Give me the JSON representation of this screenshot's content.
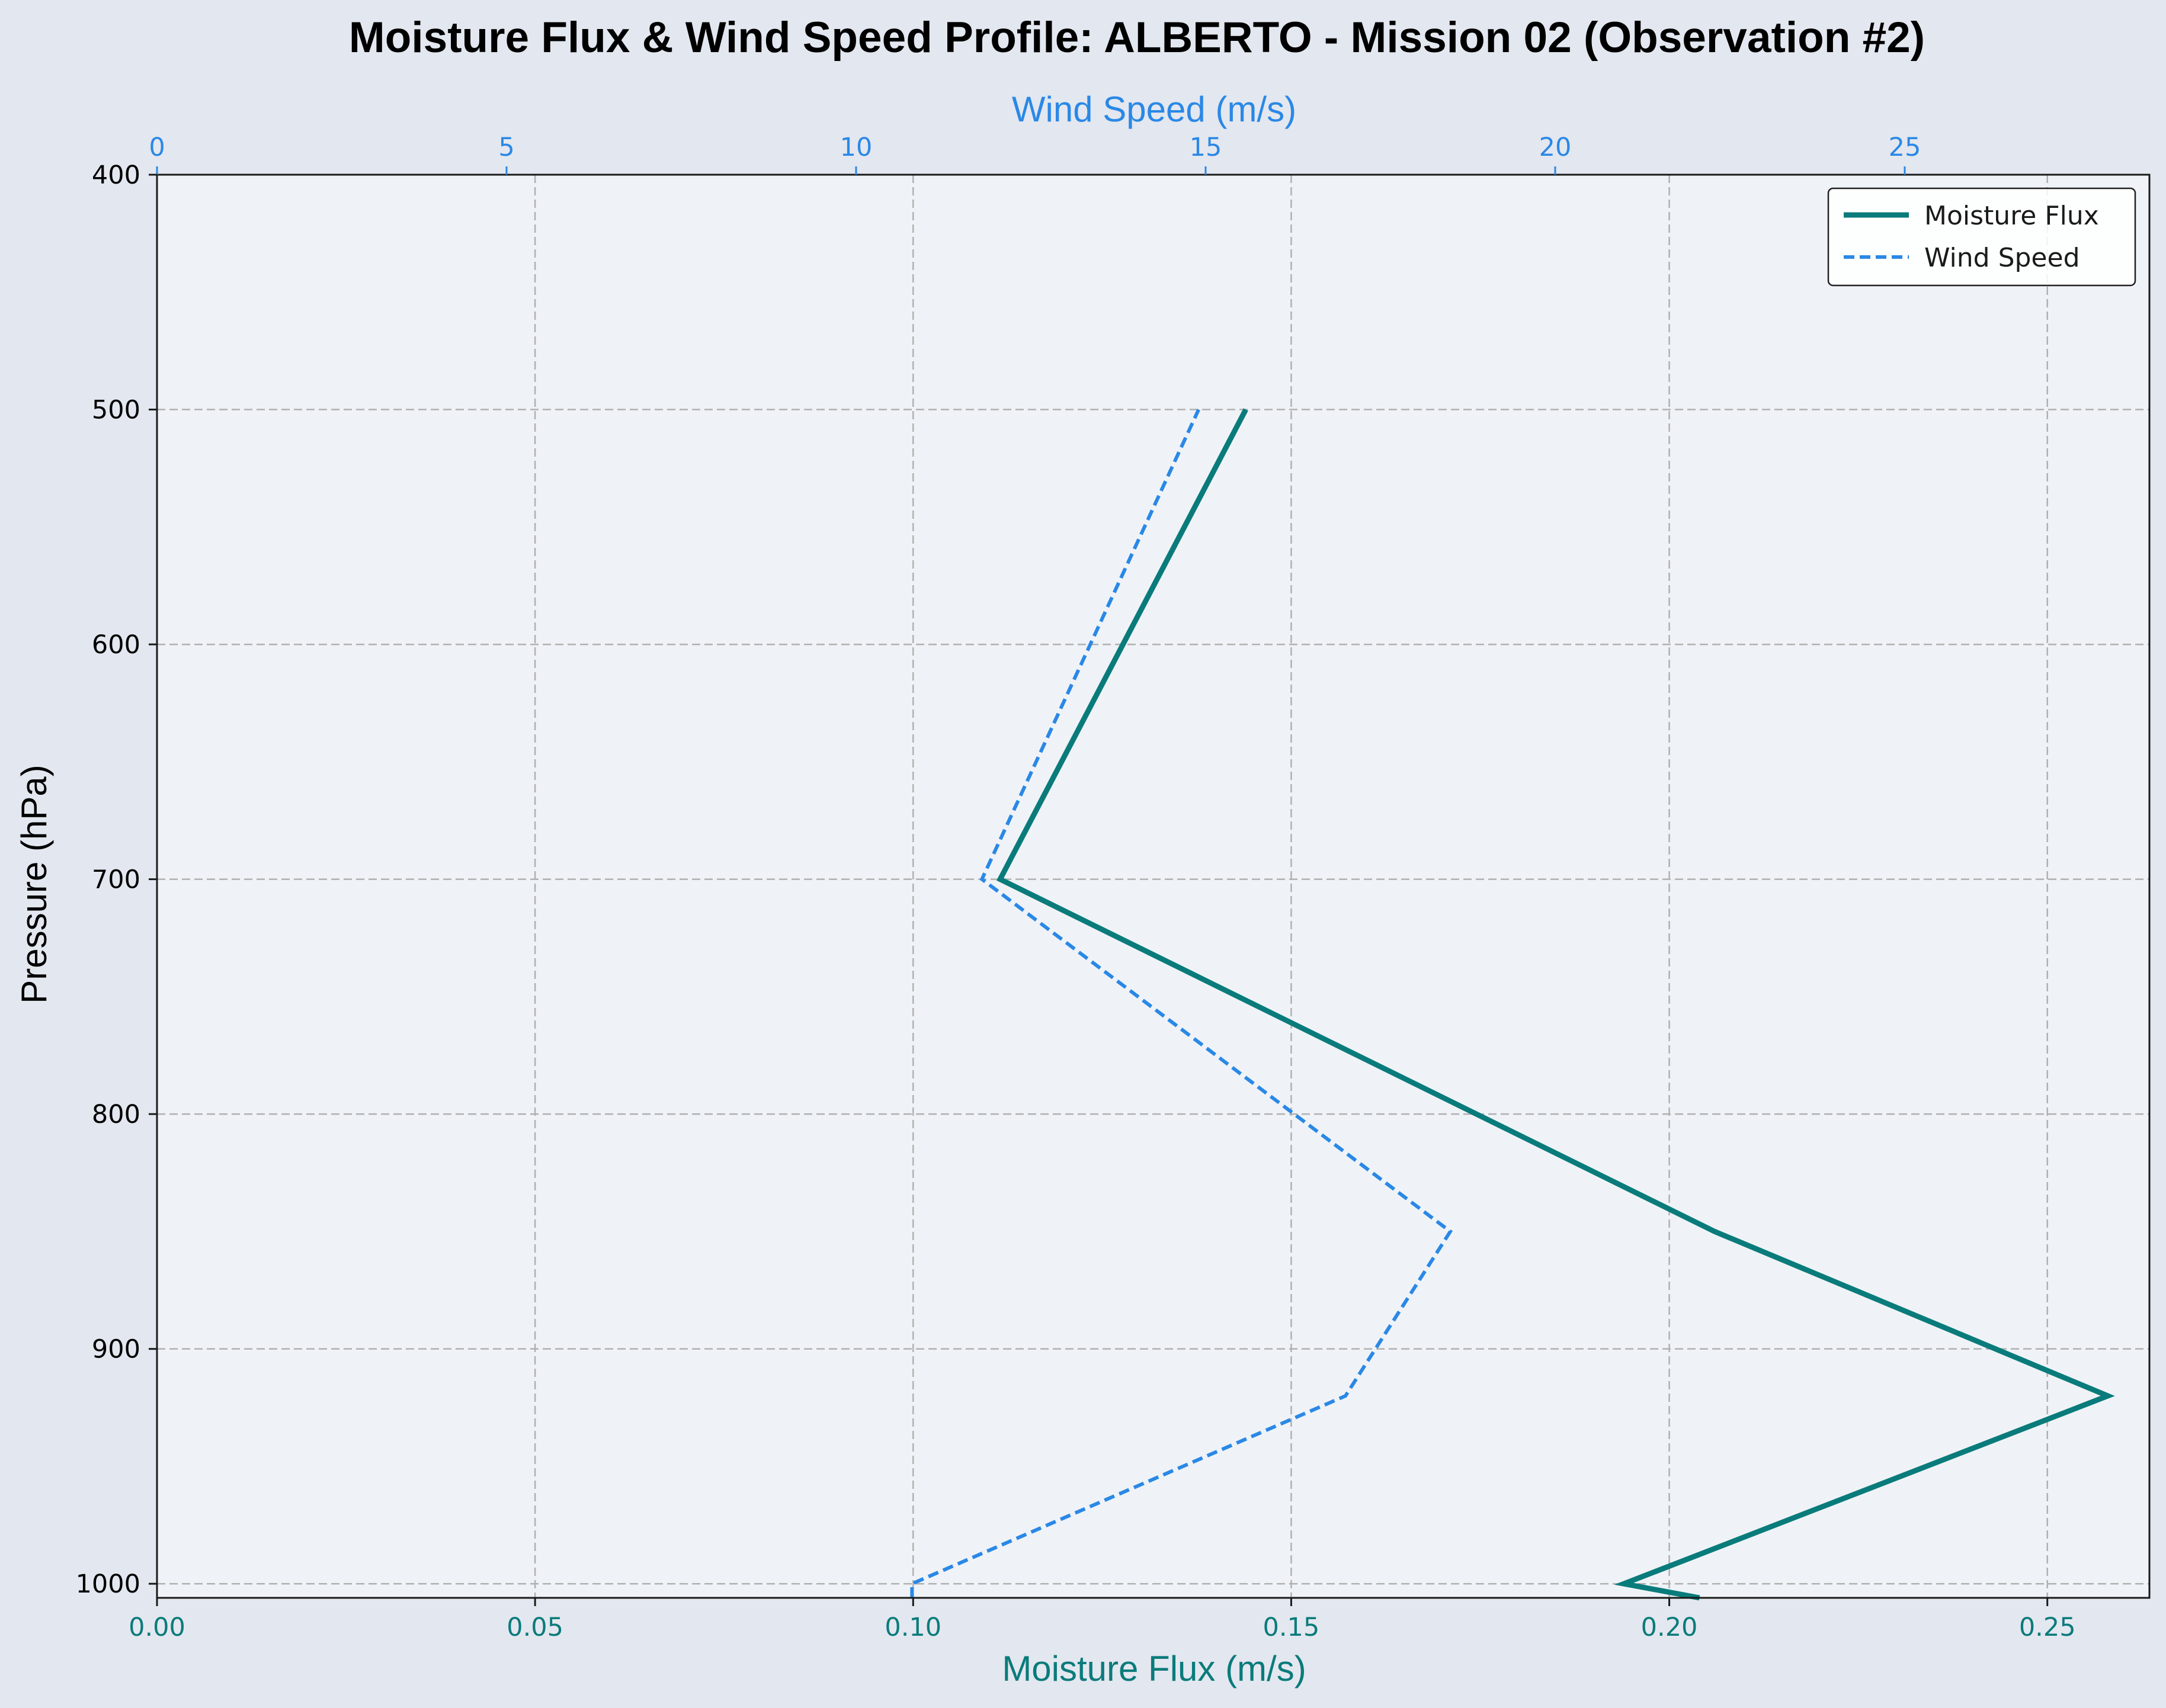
{
  "chart_data": {
    "type": "line",
    "title": "Moisture Flux & Wind Speed Profile: ALBERTO - Mission 02 (Observation #2)",
    "xlabel": "Moisture Flux (m/s)",
    "x2label": "Wind Speed (m/s)",
    "ylabel": "Pressure (hPa)",
    "xlim": [
      0,
      0.2635
    ],
    "x2lim": [
      0,
      28.5
    ],
    "ylim": [
      1006,
      400
    ],
    "y_inverted": true,
    "grid": true,
    "legend_position": "top-right",
    "xticks": [
      "0.00",
      "0.05",
      "0.10",
      "0.15",
      "0.20",
      "0.25"
    ],
    "xtick_values": [
      0,
      0.05,
      0.1,
      0.15,
      0.2,
      0.25
    ],
    "x2ticks": [
      "0",
      "5",
      "10",
      "15",
      "20",
      "25"
    ],
    "x2tick_values": [
      0,
      5,
      10,
      15,
      20,
      25
    ],
    "yticks": [
      "400",
      "500",
      "600",
      "700",
      "800",
      "900",
      "1000"
    ],
    "ytick_values": [
      400,
      500,
      600,
      700,
      800,
      900,
      1000
    ],
    "colors": {
      "moisture": "#0a7b7b",
      "wind": "#2a88e6",
      "plot_bg": "#eff3f7",
      "figure_bg": "#e3e7ef"
    },
    "series": [
      {
        "name": "Moisture Flux",
        "axis": "bottom",
        "style": "solid",
        "points": [
          {
            "pressure": 1006,
            "value": 0.204
          },
          {
            "pressure": 1000,
            "value": 0.194
          },
          {
            "pressure": 920,
            "value": 0.258
          },
          {
            "pressure": 850,
            "value": 0.206
          },
          {
            "pressure": 700,
            "value": 0.1115
          },
          {
            "pressure": 500,
            "value": 0.144
          }
        ]
      },
      {
        "name": "Wind Speed",
        "axis": "top",
        "style": "dashed",
        "points": [
          {
            "pressure": 1006,
            "value": 10.8
          },
          {
            "pressure": 1000,
            "value": 10.8
          },
          {
            "pressure": 920,
            "value": 17.0
          },
          {
            "pressure": 850,
            "value": 18.5
          },
          {
            "pressure": 700,
            "value": 11.8
          },
          {
            "pressure": 500,
            "value": 14.9
          }
        ]
      }
    ]
  }
}
